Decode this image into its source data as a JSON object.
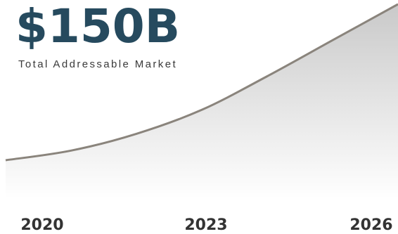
{
  "headline": {
    "value": "$150B",
    "label": "Total Addressable Market"
  },
  "colors": {
    "headline": "#264a5e",
    "line": "#8a847c",
    "area_top": "#c9c9c9",
    "area_bottom": "#ffffff"
  },
  "chart_data": {
    "type": "area",
    "title": "",
    "xlabel": "",
    "ylabel": "",
    "x_ticks": [
      "2020",
      "2023",
      "2026"
    ],
    "x": [
      2020,
      2021,
      2022,
      2023,
      2024,
      2025,
      2026
    ],
    "values": [
      20,
      28,
      42,
      62,
      90,
      120,
      150
    ],
    "xlim": [
      2020,
      2026
    ],
    "ylim": [
      0,
      150
    ],
    "grid": false,
    "legend": "none"
  }
}
